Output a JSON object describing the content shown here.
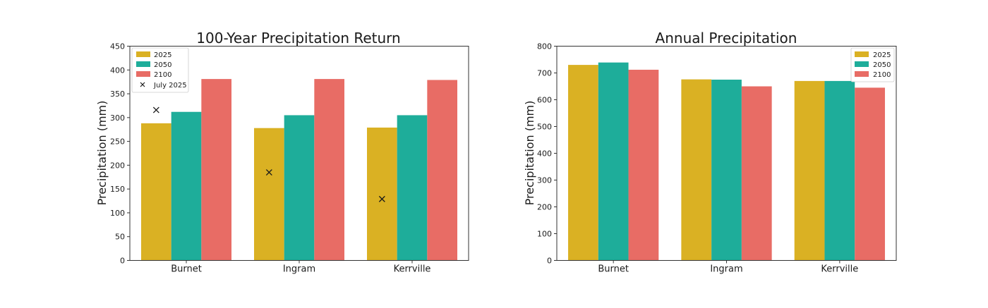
{
  "colors": {
    "2025": "#DAB123",
    "2050": "#1EAD9A",
    "2100": "#E86C65",
    "marker": "#1a1a1a"
  },
  "chart_data": [
    {
      "type": "bar",
      "title": "100-Year Precipitation Return",
      "xlabel": "",
      "ylabel": "Precipitation (mm)",
      "ylim": [
        0,
        450
      ],
      "yticks": [
        0,
        50,
        100,
        150,
        200,
        250,
        300,
        350,
        400,
        450
      ],
      "categories": [
        "Burnet",
        "Ingram",
        "Kerrville"
      ],
      "series": [
        {
          "name": "2025",
          "values": [
            288,
            278,
            279
          ]
        },
        {
          "name": "2050",
          "values": [
            312,
            305,
            305
          ]
        },
        {
          "name": "2100",
          "values": [
            381,
            381,
            379
          ]
        }
      ],
      "markers": {
        "name": "July 2025",
        "symbol": "x",
        "values": [
          316,
          185,
          129
        ]
      },
      "legend": "top-left",
      "grid": false
    },
    {
      "type": "bar",
      "title": "Annual Precipitation",
      "xlabel": "",
      "ylabel": "Precipitation (mm)",
      "ylim": [
        0,
        800
      ],
      "yticks": [
        0,
        100,
        200,
        300,
        400,
        500,
        600,
        700,
        800
      ],
      "categories": [
        "Burnet",
        "Ingram",
        "Kerrville"
      ],
      "series": [
        {
          "name": "2025",
          "values": [
            730,
            676,
            670
          ]
        },
        {
          "name": "2050",
          "values": [
            739,
            675,
            670
          ]
        },
        {
          "name": "2100",
          "values": [
            712,
            650,
            645
          ]
        }
      ],
      "legend": "top-right",
      "grid": false
    }
  ]
}
